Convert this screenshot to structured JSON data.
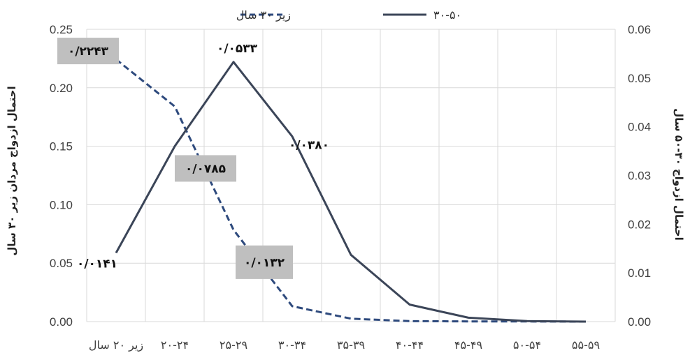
{
  "chart_data": {
    "type": "line",
    "categories": [
      "زیر ۲۰ سال",
      "۲۰-۲۴",
      "۲۵-۲۹",
      "۳۰-۳۴",
      "۳۵-۳۹",
      "۴۰-۴۴",
      "۴۵-۴۹",
      "۵۰-۵۴",
      "۵۵-۵۹"
    ],
    "series": [
      {
        "name": "زیر ۳۰ سال",
        "axis": "left",
        "style": "dashed",
        "color": "#2e4a7d",
        "values": [
          0.2243,
          0.184,
          0.0785,
          0.0132,
          0.0025,
          0.0004,
          0.0002,
          0.0001,
          0.0
        ]
      },
      {
        "name": "۳۰-۵۰",
        "axis": "right",
        "style": "solid",
        "color": "#3b4558",
        "values": [
          0.0141,
          0.036,
          0.0533,
          0.038,
          0.0137,
          0.0035,
          0.0008,
          0.0001,
          0.0
        ]
      }
    ],
    "y_left": {
      "label": "احتمال ازدواج مردان زیر ۳۰ سال",
      "ylim": [
        0,
        0.25
      ],
      "ticks": [
        "0.00",
        "0.05",
        "0.10",
        "0.15",
        "0.20",
        "0.25"
      ]
    },
    "y_right": {
      "label": "احتمال ازدواج ۳۰-۵۰ سال",
      "ylim": [
        0,
        0.06
      ],
      "ticks": [
        "0.00",
        "0.01",
        "0.02",
        "0.03",
        "0.04",
        "0.05",
        "0.06"
      ]
    },
    "grid": true,
    "legend": "top-center",
    "annotations": [
      {
        "text": "۰/۲۲۴۳",
        "series": 0,
        "index": 0,
        "boxed": true
      },
      {
        "text": "۰/۰۷۸۵",
        "series": 0,
        "index": 2,
        "boxed": true
      },
      {
        "text": "۰/۰۱۳۲",
        "series": 0,
        "index": 3,
        "boxed": true
      },
      {
        "text": "۰/۰۱۴۱",
        "series": 1,
        "index": 0,
        "boxed": false
      },
      {
        "text": "۰/۰۵۳۳",
        "series": 1,
        "index": 2,
        "boxed": false
      },
      {
        "text": "۰/۰۳۸۰",
        "series": 1,
        "index": 3,
        "boxed": false
      }
    ]
  }
}
